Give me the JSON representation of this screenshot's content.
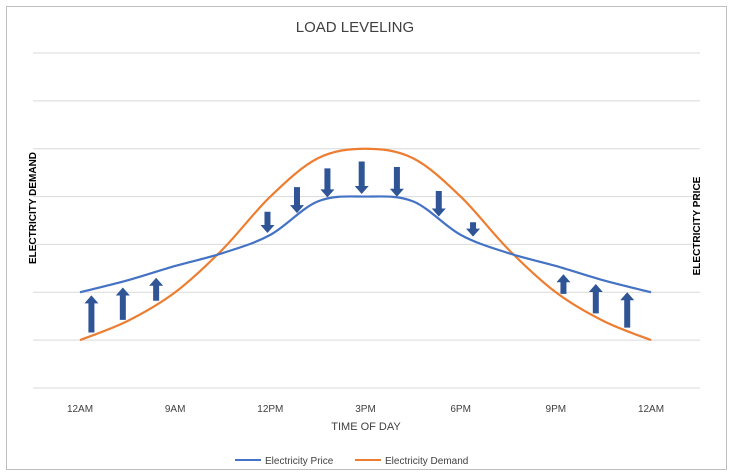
{
  "chart_data": {
    "type": "line",
    "title": "LOAD LEVELING",
    "xlabel": "TIME OF DAY",
    "left_axis_label": "ELECTRICITY DEMAND",
    "right_axis_label": "ELECTRICITY PRICE",
    "categories": [
      "12AM",
      "9AM",
      "12PM",
      "3PM",
      "6PM",
      "9PM",
      "12AM"
    ],
    "ylim": [
      0,
      7
    ],
    "grid": true,
    "y_tick_labels_visible": false,
    "series": [
      {
        "name": "Electricity Price",
        "color": "#4472c4",
        "x": [
          0,
          0.5,
          1,
          1.5,
          2,
          2.5,
          3,
          3.5,
          4,
          4.5,
          5,
          5.5,
          6
        ],
        "values": [
          2.0,
          2.25,
          2.55,
          2.82,
          3.2,
          3.9,
          4.0,
          3.9,
          3.2,
          2.82,
          2.55,
          2.25,
          2.0
        ]
      },
      {
        "name": "Electricity Demand",
        "color": "#ed7d31",
        "x": [
          0,
          0.5,
          1,
          1.5,
          2,
          2.5,
          3,
          3.5,
          4,
          4.5,
          5,
          5.5,
          6
        ],
        "values": [
          1.0,
          1.4,
          2.0,
          2.9,
          4.0,
          4.8,
          5.0,
          4.8,
          4.0,
          2.9,
          2.0,
          1.4,
          1.0
        ]
      }
    ],
    "shift_arrows": [
      {
        "x": 0.12,
        "direction": "up"
      },
      {
        "x": 0.45,
        "direction": "up"
      },
      {
        "x": 0.8,
        "direction": "up"
      },
      {
        "x": 1.97,
        "direction": "down"
      },
      {
        "x": 2.28,
        "direction": "down"
      },
      {
        "x": 2.6,
        "direction": "down"
      },
      {
        "x": 2.96,
        "direction": "down"
      },
      {
        "x": 3.33,
        "direction": "down"
      },
      {
        "x": 3.77,
        "direction": "down"
      },
      {
        "x": 4.13,
        "direction": "down"
      },
      {
        "x": 5.08,
        "direction": "up"
      },
      {
        "x": 5.42,
        "direction": "up"
      },
      {
        "x": 5.75,
        "direction": "up"
      }
    ],
    "arrow_color": "#2f5597",
    "legend_position": "bottom"
  }
}
